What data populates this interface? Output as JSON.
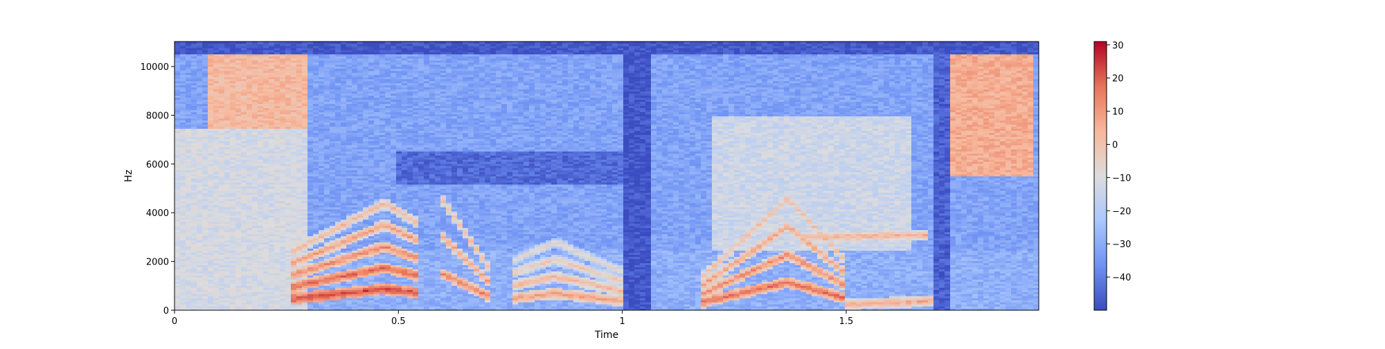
{
  "chart_data": {
    "type": "heatmap",
    "subtype": "spectrogram",
    "title": "",
    "xlabel": "Time",
    "ylabel": "Hz",
    "xlim": [
      0,
      1.93
    ],
    "ylim": [
      0,
      11025
    ],
    "xticks": [
      0,
      0.5,
      1,
      1.5
    ],
    "xtick_labels": [
      "0",
      "0.5",
      "1",
      "1.5"
    ],
    "yticks": [
      0,
      2000,
      4000,
      6000,
      8000,
      10000
    ],
    "ytick_labels": [
      "0",
      "2000",
      "4000",
      "6000",
      "8000",
      "10000"
    ],
    "colorbar": {
      "colormap": "coolwarm",
      "range": [
        -50,
        31
      ],
      "ticks": [
        -40,
        -30,
        -20,
        -10,
        0,
        10,
        20,
        30
      ],
      "tick_labels": [
        "−40",
        "−30",
        "−20",
        "−10",
        "0",
        "10",
        "20",
        "30"
      ]
    },
    "colormap_stops": [
      "#3b4cc0",
      "#6f92f3",
      "#aac7fd",
      "#dddcdc",
      "#f7b89c",
      "#e7745b",
      "#b40426"
    ],
    "background_db": -32,
    "features": [
      {
        "region": "high-frequency hiss",
        "time": [
          0.07,
          0.3
        ],
        "freq": [
          7500,
          10800
        ],
        "db": 3
      },
      {
        "region": "high-frequency hiss",
        "time": [
          1.73,
          1.92
        ],
        "freq": [
          5500,
          10500
        ],
        "db": 6
      },
      {
        "region": "broadband energy",
        "time": [
          0.0,
          0.3
        ],
        "freq": [
          0,
          7500
        ],
        "db": -12
      },
      {
        "region": "upper band",
        "time": [
          1.2,
          1.65
        ],
        "freq": [
          2500,
          8000
        ],
        "db": -14
      },
      {
        "region": "quiet band",
        "time": [
          0.5,
          1.05
        ],
        "freq": [
          5200,
          6500
        ],
        "db": -44
      },
      {
        "region": "silence",
        "time": [
          1.0,
          1.06
        ],
        "freq": [
          0,
          11025
        ],
        "db": -48
      },
      {
        "region": "silence",
        "time": [
          1.7,
          1.73
        ],
        "freq": [
          0,
          11025
        ],
        "db": -46
      },
      {
        "region": "silence",
        "time": [
          0.0,
          1.93
        ],
        "freq": [
          10500,
          11025
        ],
        "db": -48
      }
    ],
    "harmonic_tracks": [
      {
        "time": [
          0.26,
          0.47,
          0.55
        ],
        "fundamental_hz": [
          480,
          880,
          700
        ],
        "harmonics": 5,
        "db": 24
      },
      {
        "time": [
          0.6,
          0.7
        ],
        "fundamental_hz": [
          1500,
          600
        ],
        "harmonics": 3,
        "db": 14
      },
      {
        "time": [
          0.75,
          0.85,
          1.0
        ],
        "fundamental_hz": [
          500,
          700,
          400
        ],
        "harmonics": 4,
        "db": 10
      },
      {
        "time": [
          1.18,
          1.37,
          1.5
        ],
        "fundamental_hz": [
          350,
          1150,
          500
        ],
        "harmonics": 4,
        "db": 18
      },
      {
        "time": [
          1.4,
          1.68
        ],
        "fundamental_hz": [
          3000,
          3100
        ],
        "harmonics": 1,
        "db": 6
      },
      {
        "time": [
          1.5,
          1.7
        ],
        "fundamental_hz": [
          250,
          400
        ],
        "harmonics": 1,
        "db": 8
      }
    ]
  }
}
